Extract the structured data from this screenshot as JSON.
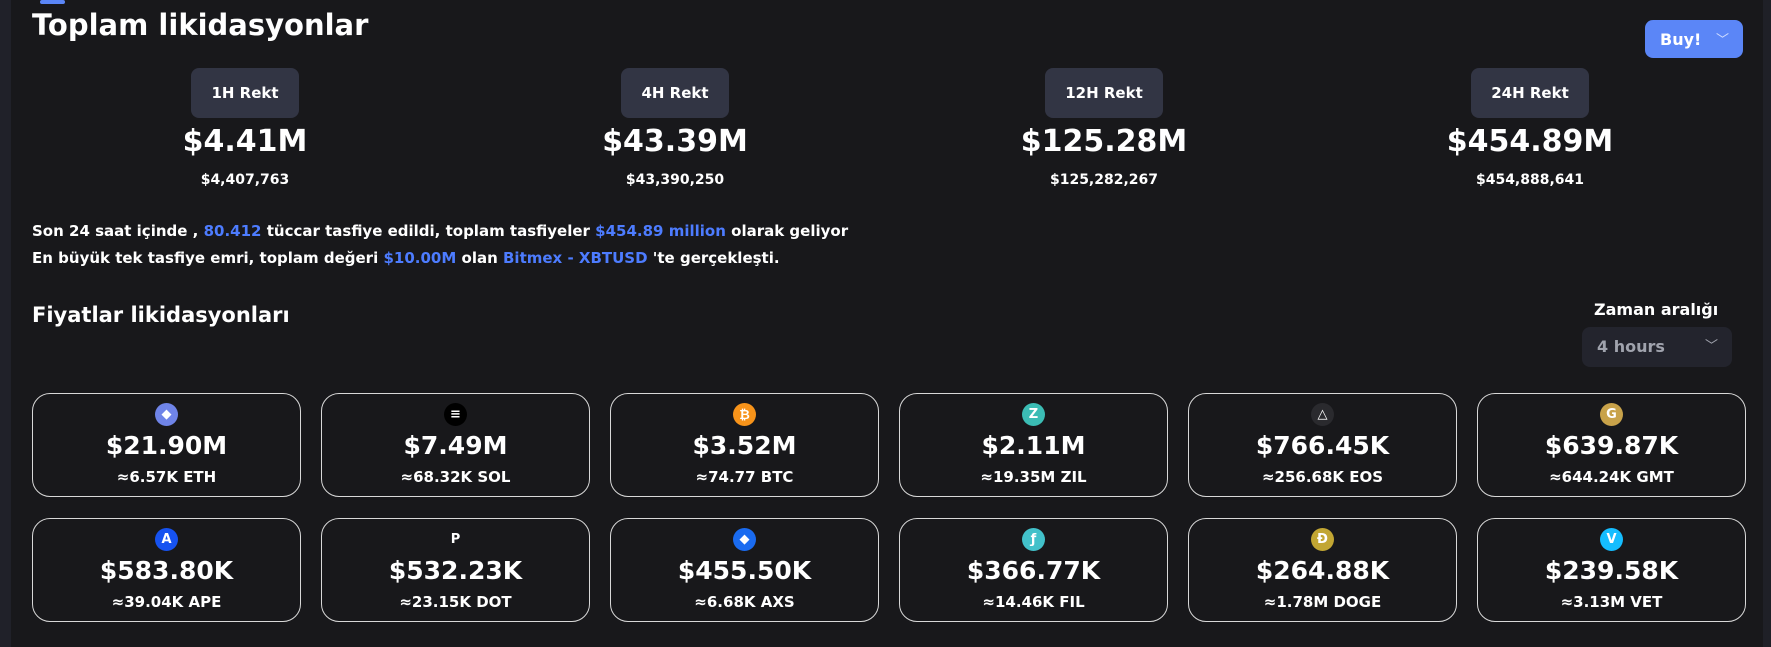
{
  "header": {
    "title": "Toplam likidasyonlar",
    "buy_label": "Buy!"
  },
  "rekt": [
    {
      "label": "1H Rekt",
      "short": "$4.41M",
      "full": "$4,407,763"
    },
    {
      "label": "4H Rekt",
      "short": "$43.39M",
      "full": "$43,390,250"
    },
    {
      "label": "12H Rekt",
      "short": "$125.28M",
      "full": "$125,282,267"
    },
    {
      "label": "24H Rekt",
      "short": "$454.89M",
      "full": "$454,888,641"
    }
  ],
  "summary": {
    "l1_a": "Son 24 saat içinde ,",
    "l1_count": "80.412",
    "l1_b": "tüccar tasfiye edildi, toplam tasfiyeler",
    "l1_total": "$454.89 million",
    "l1_c": "olarak geliyor",
    "l2_a": "En büyük tek tasfiye emri, toplam değeri",
    "l2_value": "$10.00M",
    "l2_b": "olan",
    "l2_market": "Bitmex - XBTUSD",
    "l2_c": "'te gerçekleşti."
  },
  "prices": {
    "title": "Fiyatlar likidasyonları",
    "range_label": "Zaman aralığı",
    "range_value": "4 hours"
  },
  "coins": [
    {
      "icon": "ethereum-icon",
      "glyph": "◆",
      "color": "#6f84e8",
      "value": "$21.90M",
      "amount": "≈6.57K ETH"
    },
    {
      "icon": "solana-icon",
      "glyph": "≡",
      "color": "#000000",
      "value": "$7.49M",
      "amount": "≈68.32K SOL"
    },
    {
      "icon": "bitcoin-icon",
      "glyph": "₿",
      "color": "#f7931a",
      "value": "$3.52M",
      "amount": "≈74.77 BTC"
    },
    {
      "icon": "zilliqa-icon",
      "glyph": "Z",
      "color": "#3bbcb4",
      "value": "$2.11M",
      "amount": "≈19.35M ZIL"
    },
    {
      "icon": "eos-icon",
      "glyph": "△",
      "color": "#2a2a2e",
      "value": "$766.45K",
      "amount": "≈256.68K EOS"
    },
    {
      "icon": "gmt-icon",
      "glyph": "G",
      "color": "#c8a24a",
      "value": "$639.87K",
      "amount": "≈644.24K GMT"
    },
    {
      "icon": "apecoin-icon",
      "glyph": "A",
      "color": "#1652f0",
      "value": "$583.80K",
      "amount": "≈39.04K APE"
    },
    {
      "icon": "polkadot-icon",
      "glyph": "P",
      "color": "#18181b",
      "value": "$532.23K",
      "amount": "≈23.15K DOT"
    },
    {
      "icon": "axie-icon",
      "glyph": "◆",
      "color": "#1a6bf0",
      "value": "$455.50K",
      "amount": "≈6.68K AXS"
    },
    {
      "icon": "filecoin-icon",
      "glyph": "ƒ",
      "color": "#42c1ca",
      "value": "$366.77K",
      "amount": "≈14.46K FIL"
    },
    {
      "icon": "dogecoin-icon",
      "glyph": "Ð",
      "color": "#c2a633",
      "value": "$264.88K",
      "amount": "≈1.78M DOGE"
    },
    {
      "icon": "vechain-icon",
      "glyph": "V",
      "color": "#15bdff",
      "value": "$239.58K",
      "amount": "≈3.13M VET"
    }
  ]
}
